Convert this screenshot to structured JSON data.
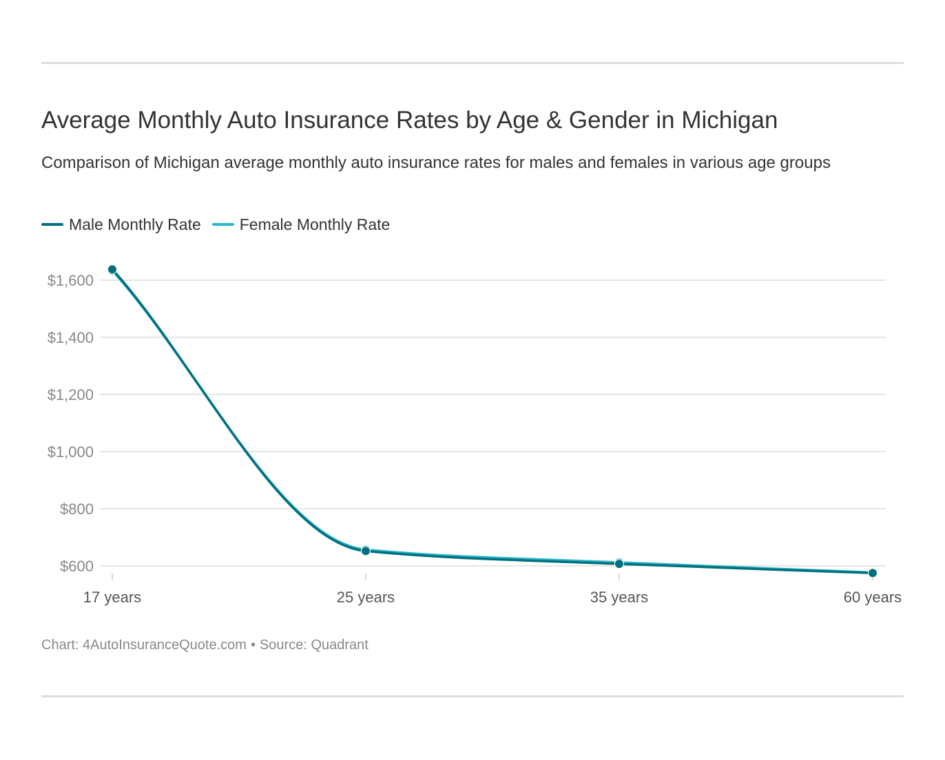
{
  "chart_data": {
    "type": "line",
    "title": "Average Monthly Auto Insurance Rates by Age & Gender in Michigan",
    "subtitle": "Comparison of Michigan average monthly auto insurance rates for males and females in various age groups",
    "categories": [
      "17 years",
      "25 years",
      "35 years",
      "60 years"
    ],
    "series": [
      {
        "name": "Male Monthly Rate",
        "color": "#00707f",
        "values": [
          1638,
          652,
          607,
          575
        ]
      },
      {
        "name": "Female Monthly Rate",
        "color": "#2ab7c9",
        "values": [
          1634,
          657,
          612,
          577
        ]
      }
    ],
    "ylim": [
      600,
      1600
    ],
    "yticks": [
      600,
      800,
      1000,
      1200,
      1400,
      1600
    ],
    "ytick_labels": [
      "$600",
      "$800",
      "$1,000",
      "$1,200",
      "$1,400",
      "$1,600"
    ],
    "grid": true,
    "legend": "top-left"
  },
  "footer": {
    "chart_credit": "Chart: 4AutoInsuranceQuote.com",
    "separator": "•",
    "source": "Source: Quadrant"
  }
}
